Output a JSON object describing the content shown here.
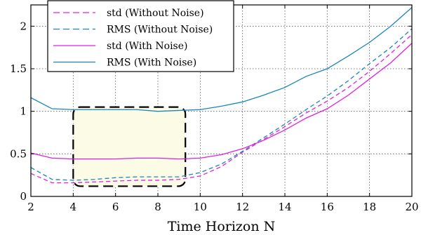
{
  "chart_data": {
    "type": "line",
    "xlabel": "Time Horizon N",
    "ylabel": "",
    "xlim": [
      2,
      20
    ],
    "ylim": [
      0,
      2.25
    ],
    "xticks": [
      2,
      4,
      6,
      8,
      10,
      12,
      14,
      16,
      18,
      20
    ],
    "yticks": [
      0,
      0.5,
      1,
      1.5,
      2
    ],
    "ytick_labels": [
      "0",
      "0.5",
      "1",
      "1.5",
      "2"
    ],
    "grid": true,
    "legend_position": "top-left",
    "x": [
      2,
      3,
      4,
      5,
      6,
      7,
      8,
      9,
      10,
      11,
      12,
      13,
      14,
      15,
      16,
      17,
      18,
      19,
      20
    ],
    "series": [
      {
        "name": "std (Without Noise)",
        "style": "dashed",
        "color": "#e020e0",
        "values": [
          0.27,
          0.16,
          0.16,
          0.17,
          0.18,
          0.19,
          0.19,
          0.2,
          0.24,
          0.35,
          0.52,
          0.67,
          0.82,
          0.98,
          1.12,
          1.28,
          1.47,
          1.68,
          1.9
        ]
      },
      {
        "name": "RMS (Without Noise)",
        "style": "dashed",
        "color": "#1a86b8",
        "values": [
          0.34,
          0.2,
          0.19,
          0.2,
          0.22,
          0.23,
          0.23,
          0.23,
          0.28,
          0.38,
          0.53,
          0.69,
          0.85,
          1.02,
          1.18,
          1.36,
          1.56,
          1.75,
          1.97
        ]
      },
      {
        "name": "std (With Noise)",
        "style": "solid",
        "color": "#e020e0",
        "values": [
          0.51,
          0.45,
          0.44,
          0.44,
          0.44,
          0.45,
          0.45,
          0.44,
          0.45,
          0.49,
          0.56,
          0.66,
          0.78,
          0.92,
          1.03,
          1.19,
          1.38,
          1.57,
          1.8
        ]
      },
      {
        "name": "RMS (With Noise)",
        "style": "solid",
        "color": "#1a86b8",
        "values": [
          1.16,
          1.03,
          1.02,
          1.02,
          1.02,
          1.02,
          1.0,
          1.01,
          1.02,
          1.06,
          1.11,
          1.19,
          1.28,
          1.41,
          1.5,
          1.65,
          1.81,
          2.0,
          2.22
        ]
      }
    ],
    "annotation_box": {
      "x_range": [
        4,
        9.3
      ],
      "y_range": [
        0.12,
        1.05
      ],
      "fill": "#fbfbe6",
      "stroke": "#000000",
      "style": "dashed"
    }
  }
}
